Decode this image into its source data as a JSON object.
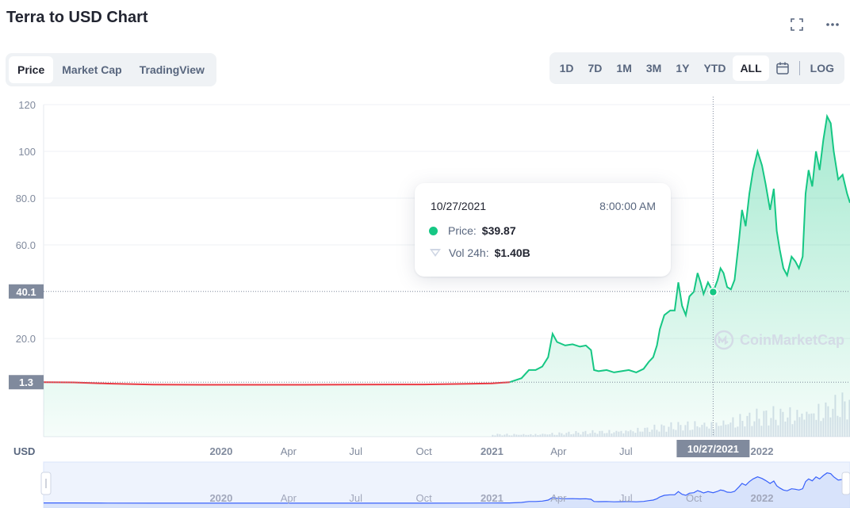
{
  "header": {
    "title": "Terra to USD Chart"
  },
  "tabs": [
    {
      "label": "Price",
      "active": true
    },
    {
      "label": "Market Cap",
      "active": false
    },
    {
      "label": "TradingView",
      "active": false
    }
  ],
  "ranges": [
    {
      "label": "1D",
      "active": false
    },
    {
      "label": "7D",
      "active": false
    },
    {
      "label": "1M",
      "active": false
    },
    {
      "label": "3M",
      "active": false
    },
    {
      "label": "1Y",
      "active": false
    },
    {
      "label": "YTD",
      "active": false
    },
    {
      "label": "ALL",
      "active": true
    }
  ],
  "log_label": "LOG",
  "icons": {
    "fullscreen": "fullscreen-icon",
    "more": "more-icon",
    "calendar": "calendar-icon",
    "logo": "coinmarketcap-logo-icon"
  },
  "colors": {
    "up": "#16c784",
    "down": "#ea3943",
    "grid": "#eff2f5",
    "axis_text": "#808a9d",
    "label_bg": "#808a9d"
  },
  "tooltip": {
    "date": "10/27/2021",
    "time": "8:00:00 AM",
    "price_label": "Price:",
    "price_value": "$39.87",
    "vol_label": "Vol 24h:",
    "vol_value": "$1.40B"
  },
  "watermark": "CoinMarketCap",
  "chart_data": {
    "type": "area",
    "ylabel": "USD",
    "y_ticks": [
      "20.0",
      "60.0",
      "80.0",
      "100",
      "120"
    ],
    "y_ticks_values": [
      20,
      60,
      80,
      100,
      120
    ],
    "ylim": [
      -22,
      120
    ],
    "x_range": [
      "2019-05-06",
      "2022-04-30"
    ],
    "x_ticks": [
      {
        "label": "2020",
        "date": "2020-01-01",
        "bold": true
      },
      {
        "label": "Apr",
        "date": "2020-04-01",
        "bold": false
      },
      {
        "label": "Jul",
        "date": "2020-07-01",
        "bold": false
      },
      {
        "label": "Oct",
        "date": "2020-10-01",
        "bold": false
      },
      {
        "label": "2021",
        "date": "2021-01-01",
        "bold": true
      },
      {
        "label": "Apr",
        "date": "2021-04-01",
        "bold": false
      },
      {
        "label": "Jul",
        "date": "2021-07-01",
        "bold": false
      },
      {
        "label": "2022",
        "date": "2022-01-01",
        "bold": true
      }
    ],
    "navigator_x_ticks": [
      {
        "label": "2020",
        "date": "2020-01-01",
        "bold": true
      },
      {
        "label": "Apr",
        "date": "2020-04-01",
        "bold": false
      },
      {
        "label": "Jul",
        "date": "2020-07-01",
        "bold": false
      },
      {
        "label": "Oct",
        "date": "2020-10-01",
        "bold": false
      },
      {
        "label": "2021",
        "date": "2021-01-01",
        "bold": true
      },
      {
        "label": "Apr",
        "date": "2021-04-01",
        "bold": false
      },
      {
        "label": "Jul",
        "date": "2021-07-01",
        "bold": false
      },
      {
        "label": "Oct",
        "date": "2021-10-01",
        "bold": false
      },
      {
        "label": "2022",
        "date": "2022-01-01",
        "bold": true
      }
    ],
    "baseline": {
      "label": "1.3",
      "value": 1.3
    },
    "crosshair": {
      "label": "40.1",
      "value": 40.1,
      "date": "2021-10-27",
      "date_label": "10/27/2021"
    },
    "series": [
      {
        "points": [
          [
            "2019-05-06",
            1.3
          ],
          [
            "2019-06-15",
            1.2
          ],
          [
            "2019-08-01",
            0.7
          ],
          [
            "2019-10-01",
            0.25
          ],
          [
            "2020-01-01",
            0.2
          ],
          [
            "2020-04-01",
            0.2
          ],
          [
            "2020-07-01",
            0.25
          ],
          [
            "2020-10-01",
            0.35
          ],
          [
            "2020-12-01",
            0.6
          ],
          [
            "2021-01-01",
            0.8
          ],
          [
            "2021-01-25",
            1.3
          ],
          [
            "2021-02-10",
            3.0
          ],
          [
            "2021-02-20",
            6.5
          ],
          [
            "2021-03-01",
            6.5
          ],
          [
            "2021-03-10",
            8.0
          ],
          [
            "2021-03-18",
            12.0
          ],
          [
            "2021-03-24",
            22.0
          ],
          [
            "2021-03-30",
            18.5
          ],
          [
            "2021-04-10",
            17.0
          ],
          [
            "2021-04-20",
            17.5
          ],
          [
            "2021-04-30",
            16.5
          ],
          [
            "2021-05-08",
            17.0
          ],
          [
            "2021-05-15",
            15.0
          ],
          [
            "2021-05-19",
            6.5
          ],
          [
            "2021-05-25",
            6.0
          ],
          [
            "2021-06-05",
            6.5
          ],
          [
            "2021-06-15",
            5.5
          ],
          [
            "2021-06-25",
            6.0
          ],
          [
            "2021-07-05",
            6.5
          ],
          [
            "2021-07-15",
            5.5
          ],
          [
            "2021-07-25",
            7.0
          ],
          [
            "2021-08-01",
            10.0
          ],
          [
            "2021-08-07",
            12.0
          ],
          [
            "2021-08-12",
            17.0
          ],
          [
            "2021-08-16",
            24.0
          ],
          [
            "2021-08-22",
            30.0
          ],
          [
            "2021-08-30",
            32.0
          ],
          [
            "2021-09-05",
            32.0
          ],
          [
            "2021-09-10",
            44.0
          ],
          [
            "2021-09-15",
            34.0
          ],
          [
            "2021-09-20",
            30.0
          ],
          [
            "2021-09-25",
            38.0
          ],
          [
            "2021-10-01",
            40.0
          ],
          [
            "2021-10-06",
            48.0
          ],
          [
            "2021-10-10",
            44.0
          ],
          [
            "2021-10-14",
            39.0
          ],
          [
            "2021-10-20",
            44.0
          ],
          [
            "2021-10-27",
            39.87
          ],
          [
            "2021-11-02",
            45.0
          ],
          [
            "2021-11-06",
            50.0
          ],
          [
            "2021-11-10",
            48.0
          ],
          [
            "2021-11-15",
            42.0
          ],
          [
            "2021-11-20",
            41.0
          ],
          [
            "2021-11-25",
            45.0
          ],
          [
            "2021-12-01",
            62.0
          ],
          [
            "2021-12-05",
            75.0
          ],
          [
            "2021-12-10",
            68.0
          ],
          [
            "2021-12-15",
            82.0
          ],
          [
            "2021-12-20",
            92.0
          ],
          [
            "2021-12-26",
            100.0
          ],
          [
            "2022-01-01",
            94.0
          ],
          [
            "2022-01-06",
            86.0
          ],
          [
            "2022-01-12",
            75.0
          ],
          [
            "2022-01-17",
            84.0
          ],
          [
            "2022-01-21",
            66.0
          ],
          [
            "2022-01-25",
            58.0
          ],
          [
            "2022-01-30",
            50.0
          ],
          [
            "2022-02-04",
            47.0
          ],
          [
            "2022-02-10",
            55.0
          ],
          [
            "2022-02-15",
            53.0
          ],
          [
            "2022-02-20",
            50.0
          ],
          [
            "2022-02-25",
            55.0
          ],
          [
            "2022-03-01",
            82.0
          ],
          [
            "2022-03-05",
            92.0
          ],
          [
            "2022-03-10",
            85.0
          ],
          [
            "2022-03-15",
            100.0
          ],
          [
            "2022-03-20",
            92.0
          ],
          [
            "2022-03-25",
            105.0
          ],
          [
            "2022-03-30",
            115.0
          ],
          [
            "2022-04-04",
            112.0
          ],
          [
            "2022-04-08",
            100.0
          ],
          [
            "2022-04-14",
            88.0
          ],
          [
            "2022-04-20",
            90.0
          ],
          [
            "2022-04-26",
            82.0
          ],
          [
            "2022-04-30",
            78.0
          ]
        ]
      }
    ]
  }
}
